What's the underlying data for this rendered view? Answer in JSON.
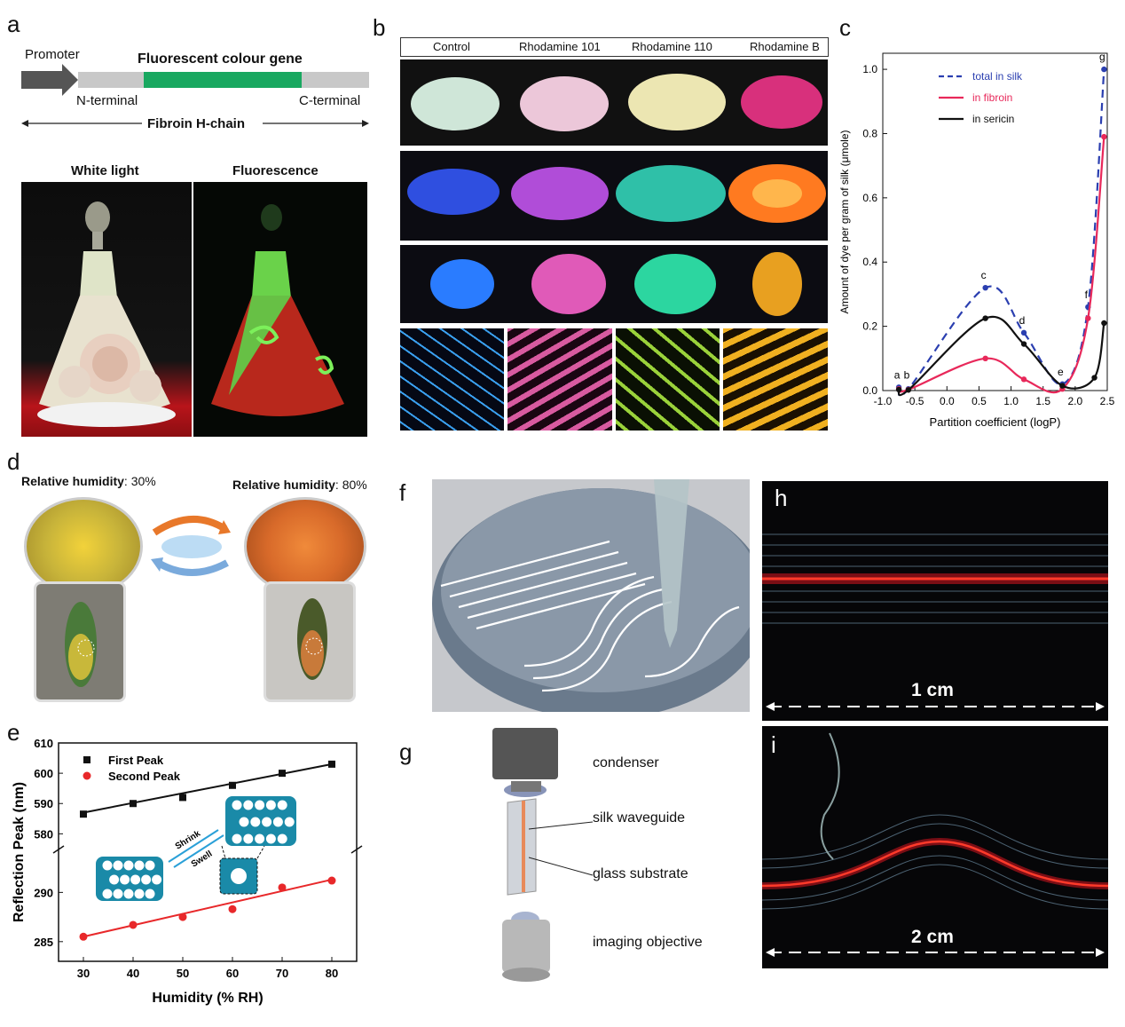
{
  "panels": {
    "a": "a",
    "b": "b",
    "c": "c",
    "d": "d",
    "e": "e",
    "f": "f",
    "g": "g",
    "h": "h",
    "i": "i"
  },
  "panel_a": {
    "promoter": "Promoter",
    "gene": "Fluorescent colour gene",
    "n_terminal": "N-terminal",
    "c_terminal": "C-terminal",
    "chain": "Fibroin H-chain",
    "white_light": "White light",
    "fluorescence": "Fluorescence",
    "colors": {
      "gene": "#19a860",
      "chain": "#c8c8c8",
      "promoter": "#555555"
    }
  },
  "panel_b": {
    "columns": [
      "Control",
      "Rhodamine 101",
      "Rhodamine 110",
      "Rhodamine B"
    ],
    "colors": {
      "cocoon_light": [
        "#cfe6d8",
        "#ecc7d9",
        "#ece6b2",
        "#d8307c"
      ],
      "cocoon_fluor": [
        "#2f4fe0",
        "#b04dd8",
        "#2fc0a8",
        "#ff7a20"
      ],
      "fiber": [
        "#2a7cff",
        "#e05ab8",
        "#2cd6a0",
        "#e8a020"
      ],
      "micro": [
        "#3aa0f0",
        "#d85aa0",
        "#9ad23a",
        "#f0b020"
      ]
    }
  },
  "chart_data": [
    {
      "type": "line",
      "title": "",
      "xlabel": "Partition coefficient (logP)",
      "ylabel": "Amount of dye per gram of silk (μmole)",
      "xlim": [
        -1.0,
        2.5
      ],
      "ylim": [
        0.0,
        1.05
      ],
      "xticks": [
        "-1.0",
        "-0.5",
        "0.0",
        "0.5",
        "1.0",
        "1.5",
        "2.0",
        "2.5"
      ],
      "yticks": [
        "0.0",
        "0.2",
        "0.4",
        "0.6",
        "0.8",
        "1.0"
      ],
      "legend_position": "top-right",
      "grid": false,
      "point_labels": [
        {
          "text": "a",
          "x": -0.75,
          "y": 0.01
        },
        {
          "text": "b",
          "x": -0.6,
          "y": 0.01
        },
        {
          "text": "c",
          "x": 0.6,
          "y": 0.32
        },
        {
          "text": "d",
          "x": 1.2,
          "y": 0.18
        },
        {
          "text": "e",
          "x": 1.8,
          "y": 0.02
        },
        {
          "text": "f",
          "x": 2.2,
          "y": 0.26
        },
        {
          "text": "g",
          "x": 2.45,
          "y": 1.0
        }
      ],
      "series": [
        {
          "name": "total in silk",
          "color": "#2b3fb0",
          "dash": true,
          "x": [
            -0.75,
            -0.6,
            0.6,
            1.2,
            1.8,
            2.2,
            2.45
          ],
          "y": [
            0.01,
            0.005,
            0.32,
            0.18,
            0.02,
            0.26,
            1.0
          ]
        },
        {
          "name": "in fibroin",
          "color": "#e8285a",
          "dash": false,
          "x": [
            -0.75,
            -0.6,
            0.6,
            1.2,
            1.8,
            2.2,
            2.45
          ],
          "y": [
            0.005,
            0.003,
            0.1,
            0.035,
            0.005,
            0.225,
            0.79
          ]
        },
        {
          "name": "in sericin",
          "color": "#111111",
          "dash": false,
          "x": [
            -0.75,
            -0.6,
            0.6,
            1.2,
            1.8,
            2.3,
            2.45
          ],
          "y": [
            0.003,
            0.002,
            0.225,
            0.145,
            0.015,
            0.04,
            0.21
          ]
        }
      ]
    },
    {
      "type": "scatter",
      "title": "",
      "xlabel": "Humidity (% RH)",
      "ylabel": "Reflection Peak (nm)",
      "xticks": [
        "30",
        "40",
        "50",
        "60",
        "70",
        "80"
      ],
      "yticks_upper": [
        "580",
        "590",
        "600",
        "610"
      ],
      "yticks_lower": [
        "285",
        "290"
      ],
      "ylim_upper": [
        576,
        610
      ],
      "ylim_lower": [
        283,
        294
      ],
      "legend_position": "top-left",
      "series": [
        {
          "name": "First Peak",
          "color": "#111111",
          "marker": "square",
          "x": [
            30,
            40,
            50,
            60,
            70,
            80
          ],
          "y": [
            586.5,
            590,
            592,
            596,
            600,
            603
          ],
          "fit": [
            587,
            603
          ]
        },
        {
          "name": "Second Peak",
          "color": "#e8282a",
          "marker": "circle",
          "x": [
            30,
            40,
            50,
            60,
            70,
            80
          ],
          "y": [
            285.5,
            286.7,
            287.5,
            288.3,
            290.5,
            291.2
          ],
          "fit": [
            285.5,
            291.3
          ]
        }
      ],
      "annotations": {
        "shrink": "Shrink",
        "swell": "Swell"
      }
    }
  ],
  "panel_d": {
    "rh30_label": "Relative humidity",
    "rh30_value": ": 30%",
    "rh80_label": "Relative humidity",
    "rh80_value": ": 80%"
  },
  "panel_g": {
    "condenser": "condenser",
    "waveguide": "silk waveguide",
    "substrate": "glass substrate",
    "objective": "imaging objective"
  },
  "panel_h": {
    "scale": "1 cm"
  },
  "panel_i": {
    "scale": "2 cm"
  }
}
